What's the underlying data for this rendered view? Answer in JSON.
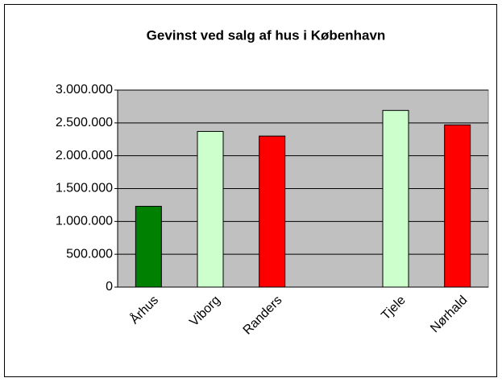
{
  "chart_data": {
    "type": "bar",
    "title": "Gevinst ved salg af hus i København",
    "categories": [
      "Århus",
      "Viborg",
      "Randers",
      null,
      "Tjele",
      "Nørhald"
    ],
    "values": [
      1230000,
      2370000,
      2300000,
      null,
      2690000,
      2470000
    ],
    "colors": [
      "#008000",
      "#ccffcc",
      "#ff0000",
      null,
      "#ccffcc",
      "#ff0000"
    ],
    "ylim": [
      0,
      3000000
    ],
    "yticks": [
      0,
      {
        "value": 500000,
        "label": "500.000"
      },
      {
        "value": 1000000,
        "label": "1.000.000"
      },
      {
        "value": 1500000,
        "label": "1.500.000"
      },
      {
        "value": 2000000,
        "label": "2.000.000"
      },
      {
        "value": 2500000,
        "label": "2.500.000"
      },
      {
        "value": 3000000,
        "label": "3.000.000"
      }
    ],
    "grid": true
  }
}
